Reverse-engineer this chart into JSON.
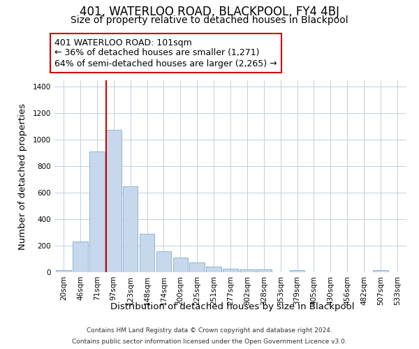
{
  "title": "401, WATERLOO ROAD, BLACKPOOL, FY4 4BJ",
  "subtitle": "Size of property relative to detached houses in Blackpool",
  "xlabel": "Distribution of detached houses by size in Blackpool",
  "ylabel": "Number of detached properties",
  "bin_labels": [
    "20sqm",
    "46sqm",
    "71sqm",
    "97sqm",
    "123sqm",
    "148sqm",
    "174sqm",
    "200sqm",
    "225sqm",
    "251sqm",
    "277sqm",
    "302sqm",
    "328sqm",
    "353sqm",
    "379sqm",
    "405sqm",
    "430sqm",
    "456sqm",
    "482sqm",
    "507sqm",
    "533sqm"
  ],
  "bar_heights": [
    15,
    230,
    910,
    1075,
    650,
    290,
    160,
    110,
    72,
    42,
    25,
    20,
    20,
    0,
    15,
    0,
    0,
    0,
    0,
    15,
    0
  ],
  "bar_color": "#c8d8ec",
  "bar_edge_color": "#7aabce",
  "marker_color": "#cc0000",
  "annotation_line1": "401 WATERLOO ROAD: 101sqm",
  "annotation_line2": "← 36% of detached houses are smaller (1,271)",
  "annotation_line3": "64% of semi-detached houses are larger (2,265) →",
  "annotation_box_color": "#ffffff",
  "annotation_box_edge": "#cc0000",
  "ylim": [
    0,
    1450
  ],
  "yticks": [
    0,
    200,
    400,
    600,
    800,
    1000,
    1200,
    1400
  ],
  "footer_line1": "Contains HM Land Registry data © Crown copyright and database right 2024.",
  "footer_line2": "Contains public sector information licensed under the Open Government Licence v3.0.",
  "background_color": "#ffffff",
  "grid_color": "#c0d0e0",
  "title_fontsize": 12,
  "subtitle_fontsize": 10,
  "axis_label_fontsize": 9.5,
  "tick_fontsize": 7.5,
  "annotation_fontsize": 9,
  "footer_fontsize": 6.5
}
